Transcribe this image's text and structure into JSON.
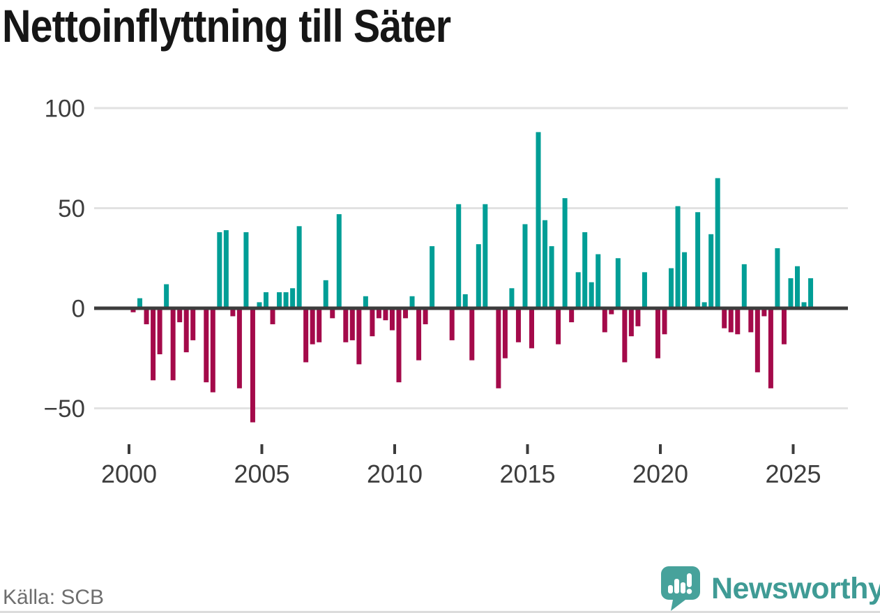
{
  "title": "Nettoinflyttning till Säter",
  "source": "Källa: SCB",
  "logo": {
    "brand": "Newsworthy"
  },
  "colors": {
    "positive": "#009e96",
    "negative": "#a40a4a",
    "zero_line": "#3c3c3c",
    "grid": "#e2e2e2",
    "axis_text": "#3d3d3d",
    "title_text": "#161616",
    "source_text": "#6e6e6e",
    "logo_teal": "#3f9b95",
    "logo_icon": "#47a29b"
  },
  "chart_data": {
    "type": "bar",
    "title": "Nettoinflyttning till Säter",
    "xlabel": "",
    "ylabel": "",
    "frequency": "quarterly",
    "x_start": {
      "year": 2000,
      "quarter": 1
    },
    "x_end": {
      "year": 2025,
      "quarter": 3
    },
    "values": [
      -2,
      5,
      -8,
      -36,
      -23,
      12,
      -36,
      -7,
      -22,
      -16,
      0,
      -37,
      -42,
      38,
      39,
      -4,
      -40,
      38,
      -57,
      3,
      8,
      -8,
      8,
      8,
      10,
      41,
      -27,
      -18,
      -17,
      14,
      -5,
      47,
      -17,
      -16,
      -28,
      6,
      -14,
      -5,
      -6,
      -11,
      -37,
      -5,
      6,
      -26,
      -8,
      31,
      0,
      0,
      -16,
      52,
      7,
      -26,
      32,
      52,
      0,
      -40,
      -25,
      10,
      -17,
      42,
      -20,
      88,
      44,
      31,
      -18,
      55,
      -7,
      18,
      38,
      13,
      27,
      -12,
      -3,
      25,
      -27,
      -14,
      -9,
      18,
      0,
      -25,
      -13,
      20,
      51,
      28,
      0,
      48,
      3,
      37,
      65,
      -10,
      -12,
      -13,
      22,
      -12,
      -32,
      -4,
      -40,
      30,
      -18,
      15,
      21,
      3,
      15
    ],
    "x_tick_years": [
      2000,
      2005,
      2010,
      2015,
      2020,
      2025
    ],
    "y_ticks": [
      -50,
      0,
      50,
      100
    ],
    "y_tick_labels": [
      "−50",
      "0",
      "50",
      "100"
    ],
    "ylim": [
      -60,
      100
    ],
    "grid": "horizontal",
    "legend": "none",
    "bar_color_rule": "teal for positive, dark red for negative"
  }
}
